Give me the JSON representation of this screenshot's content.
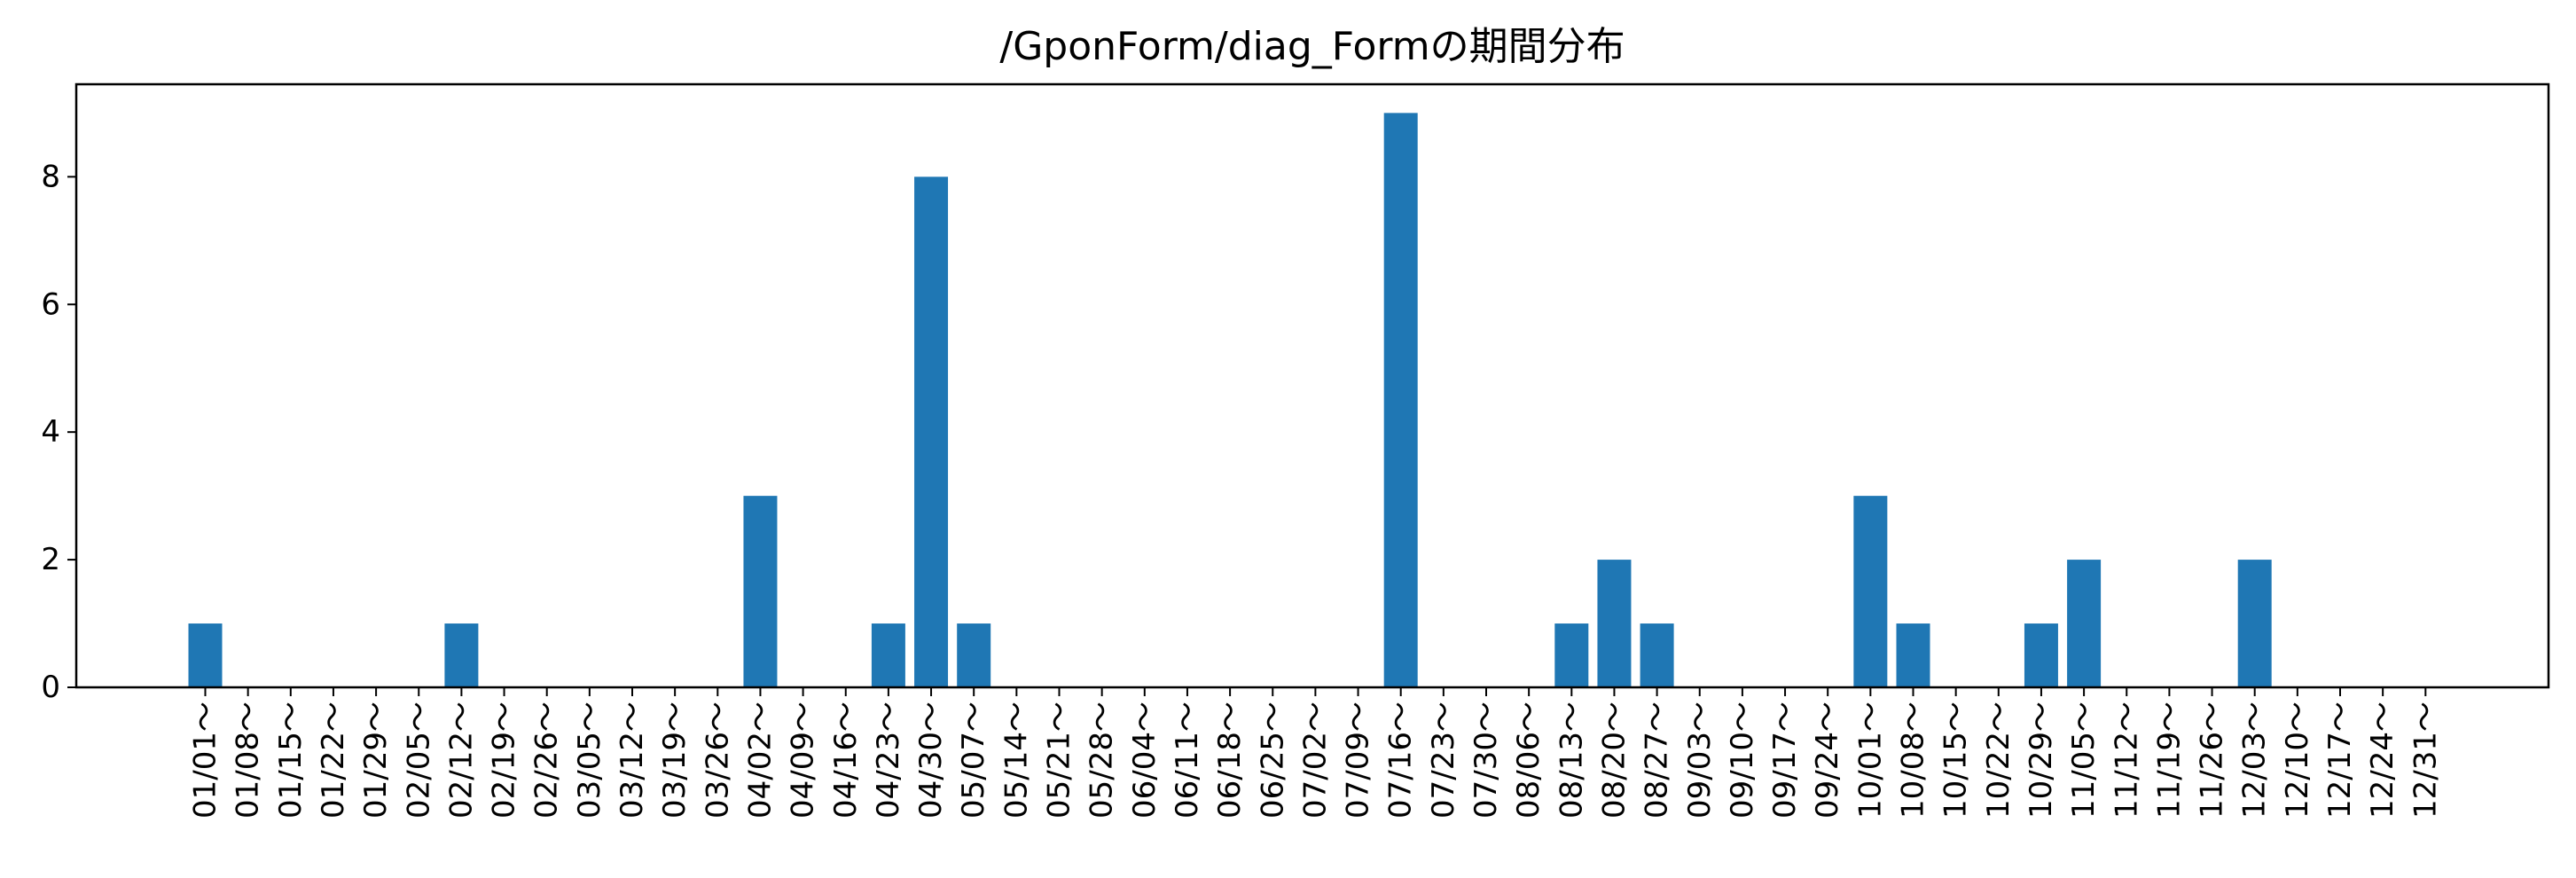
{
  "chart_data": {
    "type": "bar",
    "title": "/GponForm/diag_Formの期間分布",
    "xlabel": "",
    "ylabel": "",
    "ylim": [
      0,
      9.45
    ],
    "yticks": [
      0,
      2,
      4,
      6,
      8
    ],
    "bar_color": "#1f77b4",
    "categories": [
      "01/01～",
      "01/08～",
      "01/15～",
      "01/22～",
      "01/29～",
      "02/05～",
      "02/12～",
      "02/19～",
      "02/26～",
      "03/05～",
      "03/12～",
      "03/19～",
      "03/26～",
      "04/02～",
      "04/09～",
      "04/16～",
      "04/23～",
      "04/30～",
      "05/07～",
      "05/14～",
      "05/21～",
      "05/28～",
      "06/04～",
      "06/11～",
      "06/18～",
      "06/25～",
      "07/02～",
      "07/09～",
      "07/16～",
      "07/23～",
      "07/30～",
      "08/06～",
      "08/13～",
      "08/20～",
      "08/27～",
      "09/03～",
      "09/10～",
      "09/17～",
      "09/24～",
      "10/01～",
      "10/08～",
      "10/15～",
      "10/22～",
      "10/29～",
      "11/05～",
      "11/12～",
      "11/19～",
      "11/26～",
      "12/03～",
      "12/10～",
      "12/17～",
      "12/24～",
      "12/31～"
    ],
    "values": [
      1,
      0,
      0,
      0,
      0,
      0,
      1,
      0,
      0,
      0,
      0,
      0,
      0,
      3,
      0,
      0,
      1,
      8,
      1,
      0,
      0,
      0,
      0,
      0,
      0,
      0,
      0,
      0,
      9,
      0,
      0,
      0,
      1,
      2,
      1,
      0,
      0,
      0,
      0,
      3,
      1,
      0,
      0,
      1,
      2,
      0,
      0,
      0,
      2,
      0,
      0,
      0,
      0
    ],
    "grid": false,
    "legend": "none"
  }
}
